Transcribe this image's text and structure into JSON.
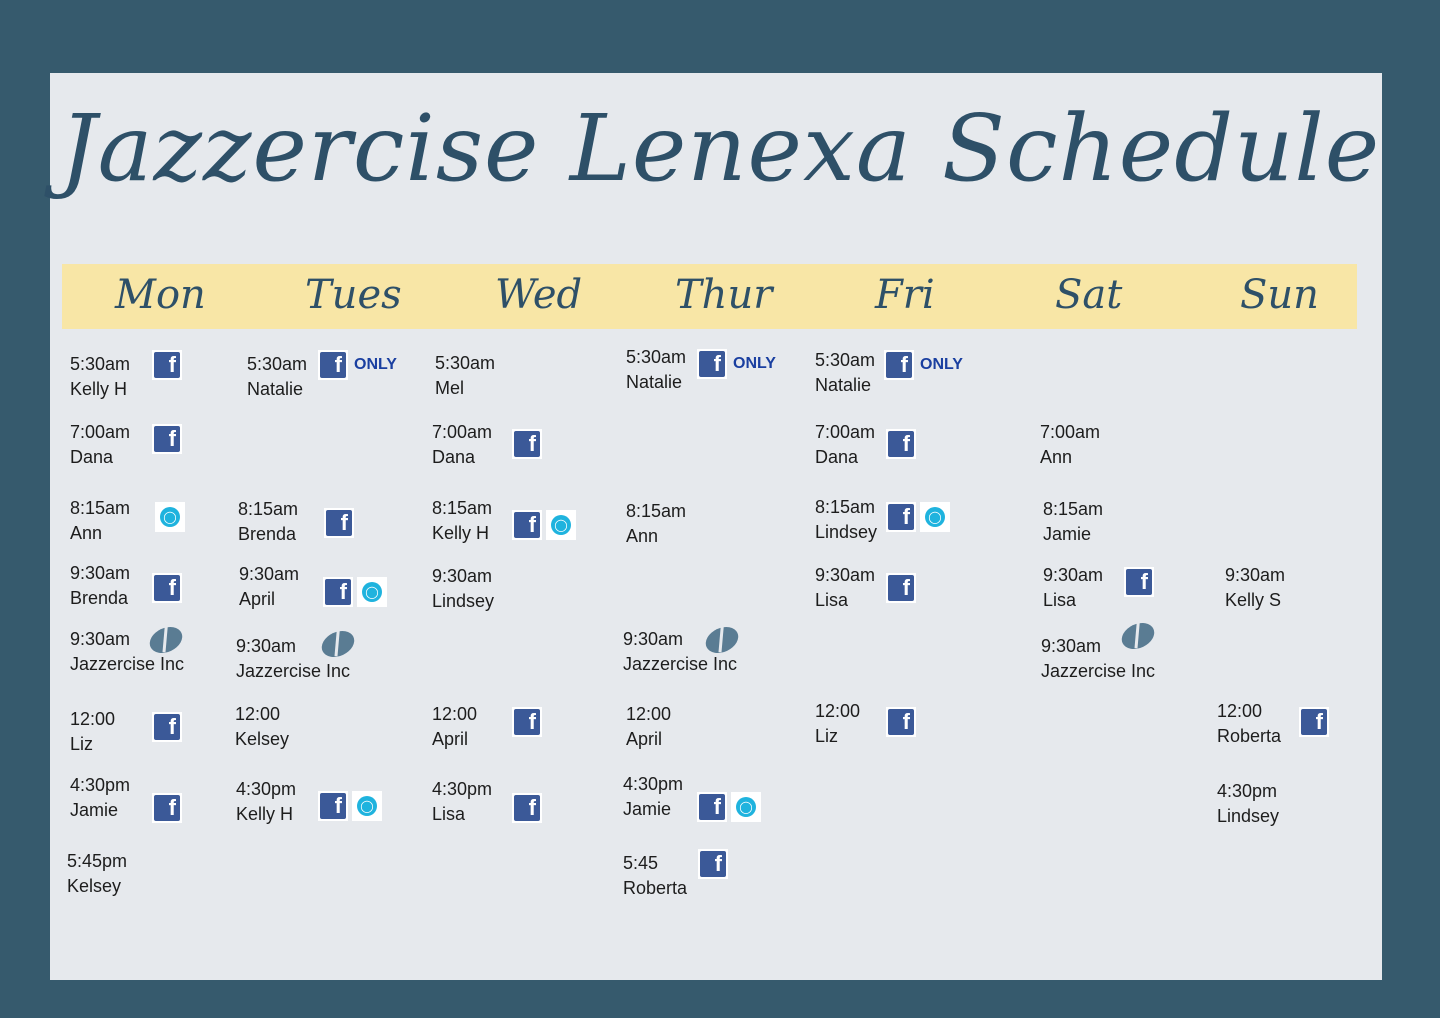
{
  "title": "Jazzercise Lenexa Schedule",
  "colors": {
    "background": "#365a6d",
    "card": "#e6e9ed",
    "band": "#f8e6a6",
    "script": "#2e5068",
    "facebook": "#3b5998",
    "childcare": "#1fb3de"
  },
  "icon_labels": {
    "only": "ONLY"
  },
  "days": [
    {
      "label": "Mon",
      "classes": [
        {
          "time": "5:30am",
          "instructor": "Kelly H",
          "icons": [
            "facebook-icon"
          ]
        },
        {
          "time": "7:00am",
          "instructor": "Dana",
          "icons": [
            "facebook-icon"
          ]
        },
        {
          "time": "8:15am",
          "instructor": "Ann",
          "icons": [
            "stroller-icon"
          ]
        },
        {
          "time": "9:30am",
          "instructor": "Brenda",
          "icons": [
            "facebook-icon"
          ]
        },
        {
          "time": "9:30am",
          "instructor": "Jazzercise Inc",
          "icons": [
            "jazzercise-logo-icon"
          ]
        },
        {
          "time": "12:00",
          "instructor": "Liz",
          "icons": [
            "facebook-icon"
          ]
        },
        {
          "time": "4:30pm",
          "instructor": "Jamie",
          "icons": [
            "facebook-icon"
          ]
        },
        {
          "time": "5:45pm",
          "instructor": "Kelsey",
          "icons": []
        }
      ]
    },
    {
      "label": "Tues",
      "classes": [
        {
          "time": "5:30am",
          "instructor": "Natalie",
          "icons": [
            "facebook-icon",
            "only"
          ]
        },
        {
          "time": "8:15am",
          "instructor": "Brenda",
          "icons": [
            "facebook-icon"
          ]
        },
        {
          "time": "9:30am",
          "instructor": "April",
          "icons": [
            "facebook-icon",
            "stroller-icon"
          ]
        },
        {
          "time": "9:30am",
          "instructor": "Jazzercise Inc",
          "icons": [
            "jazzercise-logo-icon"
          ]
        },
        {
          "time": "12:00",
          "instructor": "Kelsey",
          "icons": []
        },
        {
          "time": "4:30pm",
          "instructor": "Kelly H",
          "icons": [
            "facebook-icon",
            "stroller-icon"
          ]
        }
      ]
    },
    {
      "label": "Wed",
      "classes": [
        {
          "time": "5:30am",
          "instructor": "Mel",
          "icons": []
        },
        {
          "time": "7:00am",
          "instructor": "Dana",
          "icons": [
            "facebook-icon"
          ]
        },
        {
          "time": "8:15am",
          "instructor": "Kelly H",
          "icons": [
            "facebook-icon",
            "stroller-icon"
          ]
        },
        {
          "time": "9:30am",
          "instructor": "Lindsey",
          "icons": []
        },
        {
          "time": "12:00",
          "instructor": "April",
          "icons": [
            "facebook-icon"
          ]
        },
        {
          "time": "4:30pm",
          "instructor": "Lisa",
          "icons": [
            "facebook-icon"
          ]
        }
      ]
    },
    {
      "label": "Thur",
      "classes": [
        {
          "time": "5:30am",
          "instructor": "Natalie",
          "icons": [
            "facebook-icon",
            "only"
          ]
        },
        {
          "time": "8:15am",
          "instructor": "Ann",
          "icons": []
        },
        {
          "time": "9:30am",
          "instructor": "Jazzercise Inc",
          "icons": [
            "jazzercise-logo-icon"
          ]
        },
        {
          "time": "12:00",
          "instructor": "April",
          "icons": []
        },
        {
          "time": "4:30pm",
          "instructor": "Jamie",
          "icons": [
            "facebook-icon",
            "stroller-icon"
          ]
        },
        {
          "time": "5:45",
          "instructor": "Roberta",
          "icons": [
            "facebook-icon"
          ]
        }
      ]
    },
    {
      "label": "Fri",
      "classes": [
        {
          "time": "5:30am",
          "instructor": "Natalie",
          "icons": [
            "facebook-icon",
            "only"
          ]
        },
        {
          "time": "7:00am",
          "instructor": "Dana",
          "icons": [
            "facebook-icon"
          ]
        },
        {
          "time": "8:15am",
          "instructor": "Lindsey",
          "icons": [
            "facebook-icon",
            "stroller-icon"
          ]
        },
        {
          "time": "9:30am",
          "instructor": "Lisa",
          "icons": [
            "facebook-icon"
          ]
        },
        {
          "time": "12:00",
          "instructor": "Liz",
          "icons": [
            "facebook-icon"
          ]
        }
      ]
    },
    {
      "label": "Sat",
      "classes": [
        {
          "time": "7:00am",
          "instructor": "Ann",
          "icons": []
        },
        {
          "time": "8:15am",
          "instructor": "Jamie",
          "icons": []
        },
        {
          "time": "9:30am",
          "instructor": "Lisa",
          "icons": [
            "facebook-icon"
          ]
        },
        {
          "time": "9:30am",
          "instructor": "Jazzercise Inc",
          "icons": [
            "jazzercise-logo-icon"
          ]
        }
      ]
    },
    {
      "label": "Sun",
      "classes": [
        {
          "time": "9:30am",
          "instructor": "Kelly S",
          "icons": []
        },
        {
          "time": "12:00",
          "instructor": "Roberta",
          "icons": [
            "facebook-icon"
          ]
        },
        {
          "time": "4:30pm",
          "instructor": "Lindsey",
          "icons": []
        }
      ]
    }
  ]
}
